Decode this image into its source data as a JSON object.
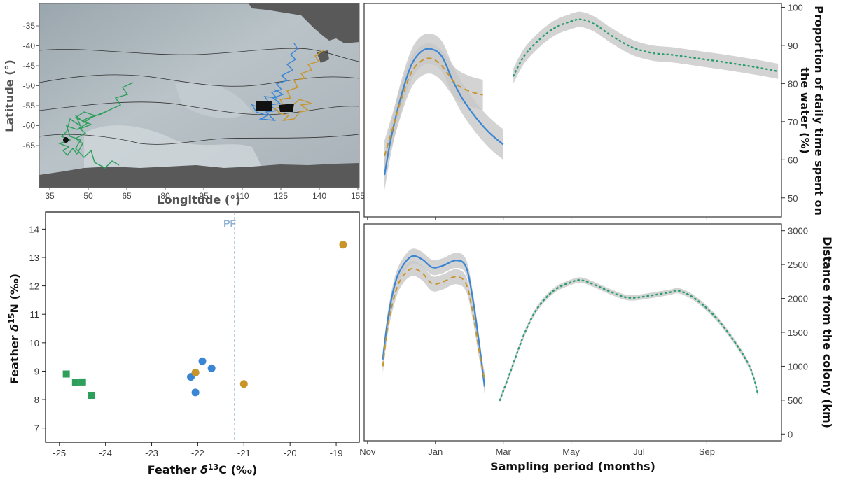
{
  "map": {
    "xlabel": "Longitude (°)",
    "ylabel": "Latitude (°)",
    "x_ticks": [
      "35",
      "50",
      "65",
      "80",
      "95",
      "110",
      "125",
      "140",
      "155"
    ],
    "y_ticks": [
      "-35",
      "-40",
      "-45",
      "-50",
      "-55",
      "-60",
      "-65"
    ]
  },
  "scatter": {
    "xlabel_prefix": "Feather ",
    "xlabel_delta": "δ",
    "xlabel_sup": "13",
    "xlabel_suffix": "C (‰)",
    "ylabel_prefix": "Feather ",
    "ylabel_delta": "δ",
    "ylabel_sup": "15",
    "ylabel_suffix": "N (‰)",
    "pf_label": "PF"
  },
  "timeseries": {
    "xlabel": "Sampling period (months)",
    "month_ticks": [
      "Nov",
      "Jan",
      "Mar",
      "May",
      "Jul",
      "Sep"
    ],
    "top_ylabel_line1": "Proportion of daily time spent on",
    "top_ylabel_line2": "the water (%)",
    "bottom_ylabel": "Distance from the colony (km)"
  },
  "colors": {
    "green": "#2e9e5b",
    "blue": "#3a86d4",
    "gold": "#c9952b",
    "teal_dots": "#2a9d6e",
    "band": "#c8c8c8",
    "pf_line": "#7fa6cc"
  },
  "chart_data": [
    {
      "type": "scatter",
      "xlabel": "Feather δ13C (‰)",
      "ylabel": "Feather δ15N (‰)",
      "xlim": [
        -25.3,
        -18.5
      ],
      "ylim": [
        6.5,
        14.6
      ],
      "x_ticks": [
        -25,
        -24,
        -23,
        -22,
        -21,
        -20,
        -19
      ],
      "y_ticks": [
        7,
        8,
        9,
        10,
        11,
        12,
        13,
        14
      ],
      "reference_line": {
        "x": -21.2,
        "label": "PF"
      },
      "series": [
        {
          "marker": "square",
          "color": "green",
          "points": [
            [
              -24.85,
              8.9
            ],
            [
              -24.65,
              8.6
            ],
            [
              -24.5,
              8.62
            ],
            [
              -24.3,
              8.15
            ]
          ]
        },
        {
          "marker": "circle",
          "color": "blue",
          "points": [
            [
              -22.15,
              8.8
            ],
            [
              -22.05,
              8.25
            ],
            [
              -21.9,
              9.35
            ],
            [
              -21.7,
              9.1
            ],
            [
              -22.05,
              8.95
            ]
          ]
        },
        {
          "marker": "circle",
          "color": "gold",
          "points": [
            [
              -22.05,
              8.95
            ],
            [
              -21.0,
              8.55
            ],
            [
              -18.85,
              13.45
            ]
          ]
        }
      ]
    },
    {
      "type": "line",
      "ylabel": "Proportion of daily time spent on the water (%)",
      "ylim": [
        45,
        101
      ],
      "y_ticks": [
        50,
        60,
        70,
        80,
        90,
        100
      ],
      "x_tick_labels": [
        "Nov",
        "Jan",
        "Mar",
        "May",
        "Jul",
        "Sep"
      ],
      "x_months_range": [
        -0.1,
        12.2
      ],
      "series": [
        {
          "style": "solid",
          "color": "blue",
          "points": [
            [
              0.5,
              56
            ],
            [
              0.7,
              66
            ],
            [
              1.0,
              77
            ],
            [
              1.3,
              85
            ],
            [
              1.6,
              88.5
            ],
            [
              1.9,
              89
            ],
            [
              2.2,
              87
            ],
            [
              2.5,
              81
            ],
            [
              2.8,
              76
            ],
            [
              3.2,
              71
            ],
            [
              3.6,
              67
            ],
            [
              4.0,
              64
            ]
          ],
          "band_half_width": 4
        },
        {
          "style": "dashed",
          "color": "gold",
          "points": [
            [
              0.5,
              61
            ],
            [
              0.7,
              67
            ],
            [
              1.0,
              76
            ],
            [
              1.3,
              83
            ],
            [
              1.6,
              86
            ],
            [
              1.9,
              86.5
            ],
            [
              2.2,
              84.5
            ],
            [
              2.6,
              80
            ],
            [
              3.0,
              78
            ],
            [
              3.4,
              77
            ]
          ],
          "band_half_width": 4
        },
        {
          "style": "dotted",
          "color": "teal_dots",
          "points": [
            [
              4.3,
              82
            ],
            [
              4.6,
              87
            ],
            [
              5.0,
              91
            ],
            [
              5.5,
              94.5
            ],
            [
              6.0,
              96.3
            ],
            [
              6.3,
              96.8
            ],
            [
              6.7,
              95.5
            ],
            [
              7.2,
              92.5
            ],
            [
              7.8,
              89.5
            ],
            [
              8.4,
              88
            ],
            [
              9.0,
              87.5
            ],
            [
              9.8,
              86.5
            ],
            [
              10.6,
              85.5
            ],
            [
              11.5,
              84.2
            ],
            [
              12.1,
              83.2
            ]
          ],
          "band_half_width": 2
        }
      ]
    },
    {
      "type": "line",
      "ylabel": "Distance from the colony (km)",
      "ylim": [
        -100,
        3100
      ],
      "y_ticks": [
        0,
        500,
        1000,
        1500,
        2000,
        2500,
        3000
      ],
      "x_tick_labels": [
        "Nov",
        "Jan",
        "Mar",
        "May",
        "Jul",
        "Sep"
      ],
      "x_months_range": [
        -0.1,
        12.2
      ],
      "series": [
        {
          "style": "solid",
          "color": "blue",
          "points": [
            [
              0.45,
              1100
            ],
            [
              0.6,
              1700
            ],
            [
              0.8,
              2200
            ],
            [
              1.0,
              2450
            ],
            [
              1.3,
              2620
            ],
            [
              1.6,
              2580
            ],
            [
              1.9,
              2460
            ],
            [
              2.2,
              2480
            ],
            [
              2.6,
              2560
            ],
            [
              2.9,
              2470
            ],
            [
              3.1,
              2000
            ],
            [
              3.3,
              1300
            ],
            [
              3.45,
              700
            ]
          ],
          "band_half_width": 110
        },
        {
          "style": "dashed",
          "color": "gold",
          "points": [
            [
              0.45,
              1000
            ],
            [
              0.6,
              1600
            ],
            [
              0.8,
              2050
            ],
            [
              1.0,
              2300
            ],
            [
              1.3,
              2440
            ],
            [
              1.6,
              2380
            ],
            [
              1.9,
              2220
            ],
            [
              2.2,
              2240
            ],
            [
              2.6,
              2320
            ],
            [
              2.9,
              2220
            ],
            [
              3.1,
              1800
            ],
            [
              3.3,
              1200
            ],
            [
              3.45,
              800
            ]
          ],
          "band_half_width": 110
        },
        {
          "style": "dotted",
          "color": "teal_dots",
          "points": [
            [
              3.9,
              500
            ],
            [
              4.2,
              900
            ],
            [
              4.6,
              1450
            ],
            [
              5.0,
              1850
            ],
            [
              5.5,
              2120
            ],
            [
              6.0,
              2240
            ],
            [
              6.3,
              2270
            ],
            [
              6.7,
              2200
            ],
            [
              7.2,
              2090
            ],
            [
              7.7,
              2010
            ],
            [
              8.3,
              2040
            ],
            [
              8.9,
              2090
            ],
            [
              9.2,
              2110
            ],
            [
              9.7,
              1980
            ],
            [
              10.3,
              1700
            ],
            [
              10.9,
              1300
            ],
            [
              11.3,
              950
            ],
            [
              11.5,
              600
            ]
          ],
          "band_half_width": 40
        }
      ]
    }
  ]
}
